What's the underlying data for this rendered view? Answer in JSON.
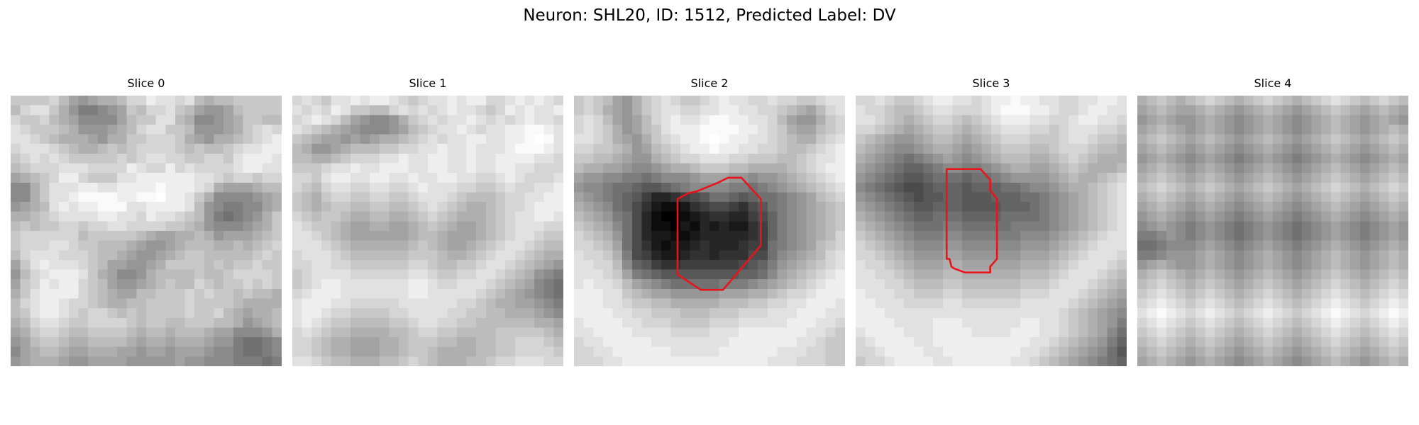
{
  "title": "Neuron: SHL20, ID: 1512, Predicted Label: DV",
  "contour_color": "#e8141c",
  "panels": [
    {
      "label": "Slice 0",
      "grid": [
        "GGGGHFDCDEEFHHJIIHIFEFFGGGGG",
        "FHIIGECAABCDGFHHIGFDCCDFGGGG",
        "HGGHFEDBBBBDFGGIIFEBBCDEGGFF",
        "IHGGGFECCCDEFHIIGGFCCCDEGHIH",
        "IIHGFEEEDCEEGGHHHGEDCEEFGHIJ",
        "HIIIHGFEEFGFGHHHHGFGFFGHIIJJ",
        "GHIHIHGGGGGHGHIIHHGGHHGIJJJI",
        "FGHHHIIIHHHHJIHHJHIHHHHIJJII",
        "DEFGHJJHGGGIIJJJJJJIIHGHHGHH",
        "BBEGIIIJJIIJJJJKJJJIHEDDDEFF",
        "BBEGIIJKKKKJJKKLJJIGEBBBBCDE",
        "CDEFIJIJJKKKIIJJJJIFCBAABBDE",
        "EEFGHIIIIJJIIHJIIHGFCA9ABCEG",
        "FGFGGHHGHHIIHHHHGGFECBBBCDEG",
        "GHHHHHHFGGGGGFEDDEEFECDDDEFG",
        "GHHHIIHGGFFFEDCCDEFFFEEFEFGH",
        "FHIIIHHHGFFEDCCDEFGGFFFFFGHG",
        "DGIJIIIHGFDDCCDEGGGGFGFGGHGG",
        "CFHIJJJIGEDBBCEFFFFGFFGHHHHG",
        "DGHJIJJHGFDCCDEFGFFHGFGGHGHG",
        "EGIJJJJHGFEDDFFGGGHGHGGFGFFE",
        "FHIJJIHHGFEEFFGGGGHGGGGFEEEE",
        "FGIJJIHGHHGFGFGGGGHGGHFEDEEF",
        "EFHIIHGGHHHHGFGGFFGGGFFECDEF",
        "DEGHHGFFGGGGFEFFEFFFEDDBBBCE",
        "CDFGGFEEFFFFEDEEDEEEDCCA99AB",
        "BDEFFEDDEEEDDCDDCDDDCBBA99AB",
        "CDEEEDCCDDDDCCCCCDCCBBBAAA9A"
      ]
    },
    {
      "label": "Slice 1",
      "grid": [
        "HIHGIIJIJJIHGHIIJIJJHHIJIJIH",
        "IHIHJIGGFFHIHIHIJIIHGHJIJIIJ",
        "HIJIHFDCBBCEGHIHIIJIHIHIJIIH",
        "IHGFEDCBBBCDFGHIIJIHIIJJKKJI",
        "GFEDDCDCDEEFGHIHIIJJIIJJKLKI",
        "FECCDEFFFGGHHIIJIIJIIIJKKKJI",
        "FFEEFGHHHIIJIIJJIIJIIJJJJIIH",
        "GGGHIIJIIJJJIIJJIIJIIJJIIHHH",
        "HHGIJJIIJJIIJIIJJIIHHIJIHHHI",
        "HGFHIIHHIIHHIJIIIHHGGHIHHIIJ",
        "GFEGHHGGHHGGHIIIHGFFFGHHIIJJ",
        "GFEFGGFFGGFFGHIHGFEEFGHHIJJJ",
        "HGFGGFEEFFEEFGHGFEEEFGHIIJJI",
        "IHGGFEDDEEDDEFGFEDDEFGHIIIHH",
        "IIHGFEDDDDDDEFFEDDDEFGHIIHGG",
        "IIIHGFEEEEEEFGFEDDEFGHIIHGFF",
        "HIIIHGFFFFFFGGGFEEFGHIIHGFEE",
        "HHIIHHGGGGGGHHGFFGGHIIHGFEDC",
        "GHIIIIHHHHHHIIHGGHHIIHGFECBA",
        "GHIJJIIIIIIIJJIHHIIIHGFEDBA9",
        "HIJJJIIIIIIIJJIIIIIHGFEDCBA9",
        "IJJJIIHHHHHIIIIIIHHGFEEDDCBA",
        "IJJIHHGGGGHHIIIIHHGGFFEEEDCB",
        "IJIHGGFFFFGGHIIHHGGFFFFFFEED",
        "HIHGFFEEEEFFGHHGGFFFFGGGGGFE",
        "HHGFEEDDDEEFGGGFFEEFFGGHHHGF",
        "HHGFEEDDDEEFGGFEEEEFFGGHHHHG",
        "IIHGFFEEEFFGHGFEEEFFGHHIIIHH"
      ]
    },
    {
      "label": "Slice 2",
      "grid": [
        "GHGFDCEGHIHGGHIJIIHHIHHGGHII",
        "GHGEDCEGHIIHHIIJJIIHHGFEDFHI",
        "HIHFDCDFHIJIIJKKJJIIHFDCCEGH",
        "HIHGECDFGIJJJKKKKJJIHGEDDFGH",
        "IIHGEDCEGHIJJKLKJJIIHGFEEGHI",
        "HHGGFECDFGHIJJKJJIIHHGFFGHIJ",
        "GGFFEDCCEFGHHIIIHHGGGFFGHIIJ",
        "FEEDDCBBCDEEFGGGFFEEEEFGHIJJ",
        "DCCBBAA9ABBBCDDDCCBCCDEFGHIJ",
        "CBBA9987789ABBBBAA9ABCDEFGHI",
        "DCBA98753345679987899ABCDFGH",
        "EDCB98642112456654679ABCDEFG",
        "FEDCA9631001234433568ABCDEFG",
        "GFEDB9631102132322458ABCDEFG",
        "HGFEC9632211233333458ABCDEFH",
        "HHGFD9642122343334559ABCDFGH",
        "IHHGEA653223443444669BCDEFHI",
        "IIHHFB87544555555678ACDEFGHI",
        "IIIHGDA9877777777889BDEFGHIJ",
        "IJIIHFDCBA99999AAABCDEFGHIJJ",
        "JJJIIGFEDDCCCCCDDDEEFGHHIJJJ",
        "JJJIIHGGFFEEEEEFFFGGHHIIJJJI",
        "JJJJIIHHGGGFFFGGGHHHIIIJJJII",
        "IJJJJIIHHHGGGGHHHIIIIIJJJIIH",
        "IIJJJJIIIIHHHHIIIJJJJJJJIIHG",
        "HIIJJJJJIIIIIIIIJJJJJJJIIHGG",
        "HHIIJJJJJJIIIIIJJJJJJIIIHHGG",
        "HHHIIJJJJJJJJJJJJJJJIIIHHHGG"
      ],
      "contour": [
        [
          15.9,
          8.5
        ],
        [
          17.3,
          8.5
        ],
        [
          19.3,
          10.7
        ],
        [
          19.3,
          15.5
        ],
        [
          15.4,
          20.1
        ],
        [
          13.1,
          20.1
        ],
        [
          10.7,
          18.5
        ],
        [
          10.7,
          10.7
        ],
        [
          11.8,
          10.1
        ],
        [
          12.7,
          9.9
        ],
        [
          14.9,
          9.0
        ]
      ]
    },
    {
      "label": "Slice 3",
      "grid": [
        "HHIHGGHIJJIIHIJJKJJIIHHIIJJI",
        "IHHGFFGHIIHHHIJKKKJJIHHIJJII",
        "IIHGFEFGHHGFGHIJJJIIHHIJJIIH",
        "HHGFEDEFGGFEFGHIIIHHGHIIIHHG",
        "GFEDCCDEFFEDEFGHHHGGGHIIHGGF",
        "FEDCBBCDEEDCDEFGGGFFGHHHGFFE",
        "EDCBA9ABCDCBCDEFFFEEFGHGFEEE",
        "DCBA9889ABBAABCDEEDDEFGFEEEF",
        "CBA98778999899ABCCCCDEFEEFGH",
        "BA987667888788899ABBCDEEFGHI",
        "CBA9876778877788899ABCDEFGHI",
        "DCBA987788877778889ABCDEFGHI",
        "EDCBA98899988889999ABCDEFGHI",
        "FEDCBA999AA99999AAAABCDEFGHI",
        "GFEDCBAAABBAAAAAABBBCDEFGHII",
        "HGFEDCBBBCCBBBBBBCCCDEFGHIII",
        "HHGFEDCCCDDCCCCCCDDDEFGHIIIH",
        "IHHGFEDDDEEDDDDDDEEEFGHIIIHG",
        "IIHHGFEEEFFEEEEEEFFFGHIIIHGF",
        "IIIHHGFFFGGFFFFFFGGGHIIIHGFE",
        "JIIIHHGGGHHGGGGGGHHHIIIHGFED",
        "JJIIIHHHHIIHHHHHHIIIIIHGFEDC",
        "JJJIIIIIIIIIIIIIIIIIIHGFEDCB",
        "JJJJIIIIJJJIIIIIIJJIIHGFEDCA",
        "IJJJJIIIJJJJIIIIJJJIIHGFEDB9",
        "HIJJJJIIJJJJJJJJJJIIHGFEDCA8",
        "HHIJJJJIIJJJJJJJJIIHGFEDCB97",
        "GHHIJJJJIIJJJJJJIIHGFEDCBA98"
      ],
      "contour": [
        [
          9.4,
          7.6
        ],
        [
          12.9,
          7.6
        ],
        [
          13.9,
          8.7
        ],
        [
          13.9,
          9.8
        ],
        [
          14.6,
          10.7
        ],
        [
          14.6,
          16.9
        ],
        [
          13.9,
          17.7
        ],
        [
          13.9,
          18.3
        ],
        [
          11.3,
          18.3
        ],
        [
          10.2,
          17.9
        ],
        [
          9.9,
          17.7
        ],
        [
          9.7,
          16.9
        ],
        [
          9.4,
          16.9
        ]
      ]
    },
    {
      "label": "Slice 4",
      "grid": [
        "EFGFEFGHGFEFGHGFEFGHIHGFGHGF",
        "DEFEDDEFEDCDEFEDCDEFGFEDEFED",
        "CDEDCCDEDCBCDEDCBCDEFEDCDEDC",
        "DEFEDCDEDCBCDEDCBCDEFEDCDEFE",
        "EFGFEDEFEDCDEFEDCDEFGFEDEFGF",
        "DEFEDCDEDCBCDEDCBCDEFEDCDEFE",
        "CDEDCBCDCBABCDCBABCDEDCBCDED",
        "DEFEDCDEDCBCDEDCBCDEFEDCDEFE",
        "EFGFEDEFEDCDEFEDCDEFGFEDEFGF",
        "FGHGFEFGFEDEFGFEDEFGHGFEFGHG",
        "EFGFEDEFEDCDEFEDCDEFGFEDEFGF",
        "DEFEDCDEDCBCDEDCBCDEFEDCDEFE",
        "CDEDCBCDCBABCDCBABCDEDCBCDED",
        "BCDCBABCBA9ABCBA9ABCDCBABCDC",
        "AABCBABCBA9ABCBA9ABCDCBABCDC",
        "99ABBBCDCBABCDCBABCDEDCBCDED",
        "AABCCCDEDCBCDEDCBCDEFEDCDEFE",
        "CDEDCCDEDCBCDEDCBCDEFEDCDEFE",
        "EFGFEDEFEDCDEFEDCDEFGFEDEFGF",
        "FGHGFEFGFEDEFGFEDEFGHGFEFGHG",
        "GHIHGFGHGFEFGHGFEFGHIHGFGHIH",
        "HIJIHGHIHGFGHIHGFGHIJIHGHIJI",
        "IJKJIHIJIHGHIJIHGHIJKJIHIJKJ",
        "HIJIHGHIHGFGHIHGFGHIJIHGHIJI",
        "GHIHGFGHGFEFGHGFEFGHIHGFGHIH",
        "FGHGFEFGFEDEFGFEDEFGHGFEFGHG",
        "EFGFEDEFEDCDEFEDCDEFGFEDEFGF",
        "DEFEDCDEDCBCDEDCBCDEFEDCDEFE"
      ]
    }
  ]
}
